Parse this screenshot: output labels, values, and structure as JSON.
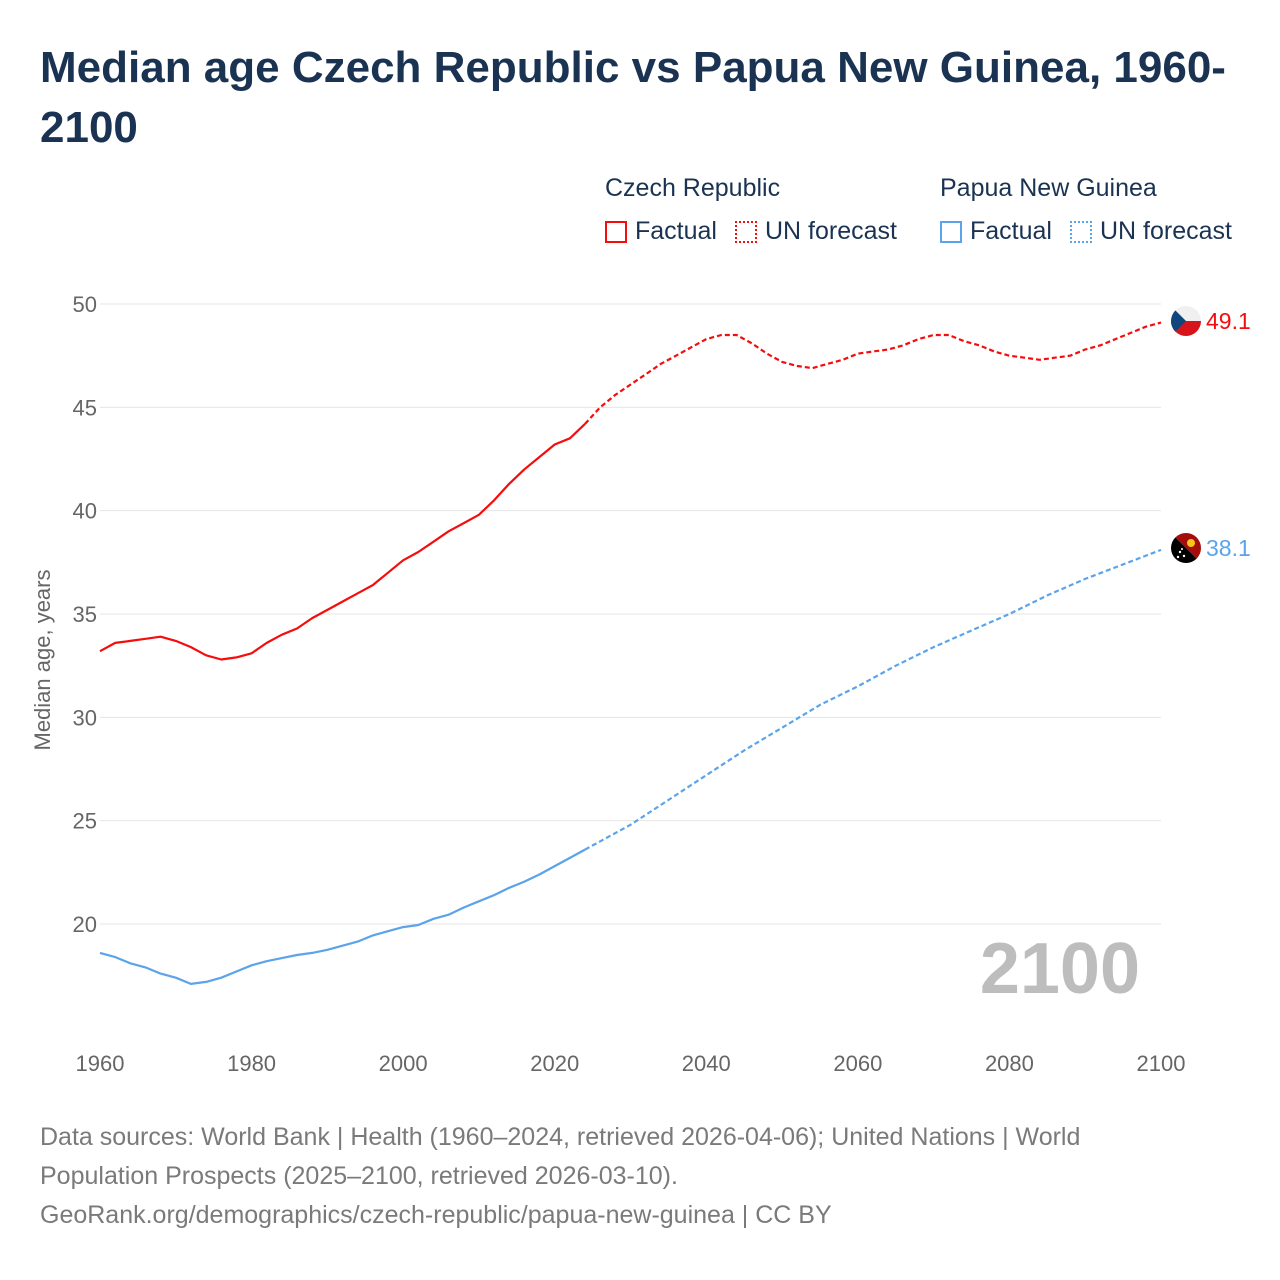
{
  "title": "Median age Czech Republic vs Papua New Guinea, 1960-2100",
  "legend": {
    "groups": [
      {
        "name": "Czech Republic",
        "factual": "Factual",
        "forecast": "UN forecast",
        "color": "#f50d0d"
      },
      {
        "name": "Papua New Guinea",
        "factual": "Factual",
        "forecast": "UN forecast",
        "color": "#5ba3ea"
      }
    ]
  },
  "footer": {
    "line1": "Data sources: World Bank | Health (1960–2024, retrieved 2026-04-06); United Nations | World",
    "line2": "Population Prospects (2025–2100, retrieved 2026-03-10).",
    "line3": "GeoRank.org/demographics/czech-republic/papua-new-guinea | CC BY"
  },
  "chart_data": {
    "type": "line",
    "title": "Median age Czech Republic vs Papua New Guinea, 1960-2100",
    "xlabel": "",
    "ylabel": "Median age, years",
    "xlim": [
      1960,
      2100
    ],
    "ylim": [
      15,
      50
    ],
    "xticks": [
      "1960",
      "1980",
      "2000",
      "2020",
      "2040",
      "2060",
      "2080",
      "2100"
    ],
    "yticks": [
      "20",
      "25",
      "30",
      "35",
      "40",
      "45",
      "50"
    ],
    "grid": true,
    "year_watermark": "2100",
    "series": [
      {
        "name": "Czech Republic",
        "color": "#f50d0d",
        "end_label": "49.1",
        "factual": {
          "x": [
            1960,
            1962,
            1964,
            1966,
            1968,
            1970,
            1972,
            1974,
            1976,
            1978,
            1980,
            1982,
            1984,
            1986,
            1988,
            1990,
            1992,
            1994,
            1996,
            1998,
            2000,
            2002,
            2004,
            2006,
            2008,
            2010,
            2012,
            2014,
            2016,
            2018,
            2020,
            2022,
            2024
          ],
          "y": [
            33.2,
            33.6,
            33.7,
            33.8,
            33.9,
            33.7,
            33.4,
            33.0,
            32.8,
            32.9,
            33.1,
            33.6,
            34.0,
            34.3,
            34.8,
            35.2,
            35.6,
            36.0,
            36.4,
            37.0,
            37.6,
            38.0,
            38.5,
            39.0,
            39.4,
            39.8,
            40.5,
            41.3,
            42.0,
            42.6,
            43.2,
            43.5,
            44.2
          ]
        },
        "forecast": {
          "x": [
            2024,
            2026,
            2028,
            2030,
            2032,
            2034,
            2036,
            2038,
            2040,
            2042,
            2044,
            2046,
            2048,
            2050,
            2052,
            2054,
            2056,
            2058,
            2060,
            2062,
            2064,
            2066,
            2068,
            2070,
            2072,
            2074,
            2076,
            2078,
            2080,
            2082,
            2084,
            2086,
            2088,
            2090,
            2092,
            2094,
            2096,
            2098,
            2100
          ],
          "y": [
            44.2,
            45.0,
            45.6,
            46.1,
            46.6,
            47.1,
            47.5,
            47.9,
            48.3,
            48.5,
            48.5,
            48.1,
            47.6,
            47.2,
            47.0,
            46.9,
            47.1,
            47.3,
            47.6,
            47.7,
            47.8,
            48.0,
            48.3,
            48.5,
            48.5,
            48.2,
            48.0,
            47.7,
            47.5,
            47.4,
            47.3,
            47.4,
            47.5,
            47.8,
            48.0,
            48.3,
            48.6,
            48.9,
            49.1
          ]
        }
      },
      {
        "name": "Papua New Guinea",
        "color": "#5ba3ea",
        "end_label": "38.1",
        "factual": {
          "x": [
            1960,
            1962,
            1964,
            1966,
            1968,
            1970,
            1972,
            1974,
            1976,
            1978,
            1980,
            1982,
            1984,
            1986,
            1988,
            1990,
            1992,
            1994,
            1996,
            1998,
            2000,
            2002,
            2004,
            2006,
            2008,
            2010,
            2012,
            2014,
            2016,
            2018,
            2020,
            2022,
            2024
          ],
          "y": [
            18.6,
            18.4,
            18.1,
            17.9,
            17.6,
            17.4,
            17.1,
            17.2,
            17.4,
            17.7,
            18.0,
            18.2,
            18.35,
            18.5,
            18.6,
            18.75,
            18.95,
            19.15,
            19.45,
            19.65,
            19.85,
            19.95,
            20.25,
            20.45,
            20.8,
            21.1,
            21.4,
            21.75,
            22.05,
            22.4,
            22.8,
            23.2,
            23.6
          ]
        },
        "forecast": {
          "x": [
            2024,
            2030,
            2035,
            2040,
            2045,
            2050,
            2055,
            2060,
            2065,
            2070,
            2075,
            2080,
            2085,
            2090,
            2095,
            2100
          ],
          "y": [
            23.6,
            24.8,
            26.0,
            27.2,
            28.4,
            29.5,
            30.6,
            31.5,
            32.5,
            33.4,
            34.2,
            35.0,
            35.9,
            36.7,
            37.4,
            38.1
          ]
        }
      }
    ]
  }
}
